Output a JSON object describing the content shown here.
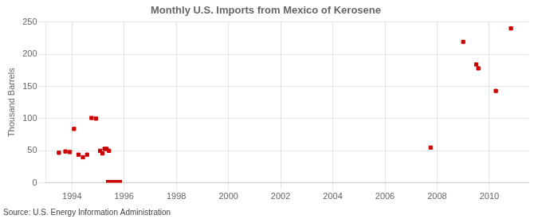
{
  "chart_data": {
    "type": "scatter",
    "title": "Monthly U.S. Imports from Mexico of Kerosene",
    "y_label": "Thousand Barrels",
    "annotation": "Source: U.S. Energy Information Administration",
    "xlim": [
      1993.0,
      2011.5
    ],
    "xticks": [
      1994,
      1996,
      1998,
      2000,
      2002,
      2004,
      2006,
      2008,
      2010
    ],
    "ylim": [
      0,
      250
    ],
    "yticks": [
      0,
      50,
      100,
      150,
      200,
      250
    ],
    "grid": true,
    "series": [
      {
        "type": "scatter",
        "marker": "square",
        "color": "#cc0000",
        "x": [
          1993.5,
          1993.75,
          1993.92,
          1994.08,
          1994.25,
          1994.42,
          1994.58,
          1994.75,
          1994.92,
          1995.08,
          1995.17,
          1995.25,
          1995.33,
          1995.42,
          2007.75,
          2009.0,
          2009.5,
          2009.58,
          2010.25,
          2010.83
        ],
        "values": [
          47,
          49,
          48,
          84,
          44,
          40,
          44,
          101,
          100,
          50,
          46,
          53,
          53,
          50,
          55,
          219,
          184,
          178,
          143,
          240
        ]
      },
      {
        "type": "area",
        "color": "#cc0000",
        "x": [
          1995.3,
          1995.92
        ],
        "values": [
          4,
          4
        ]
      }
    ]
  }
}
